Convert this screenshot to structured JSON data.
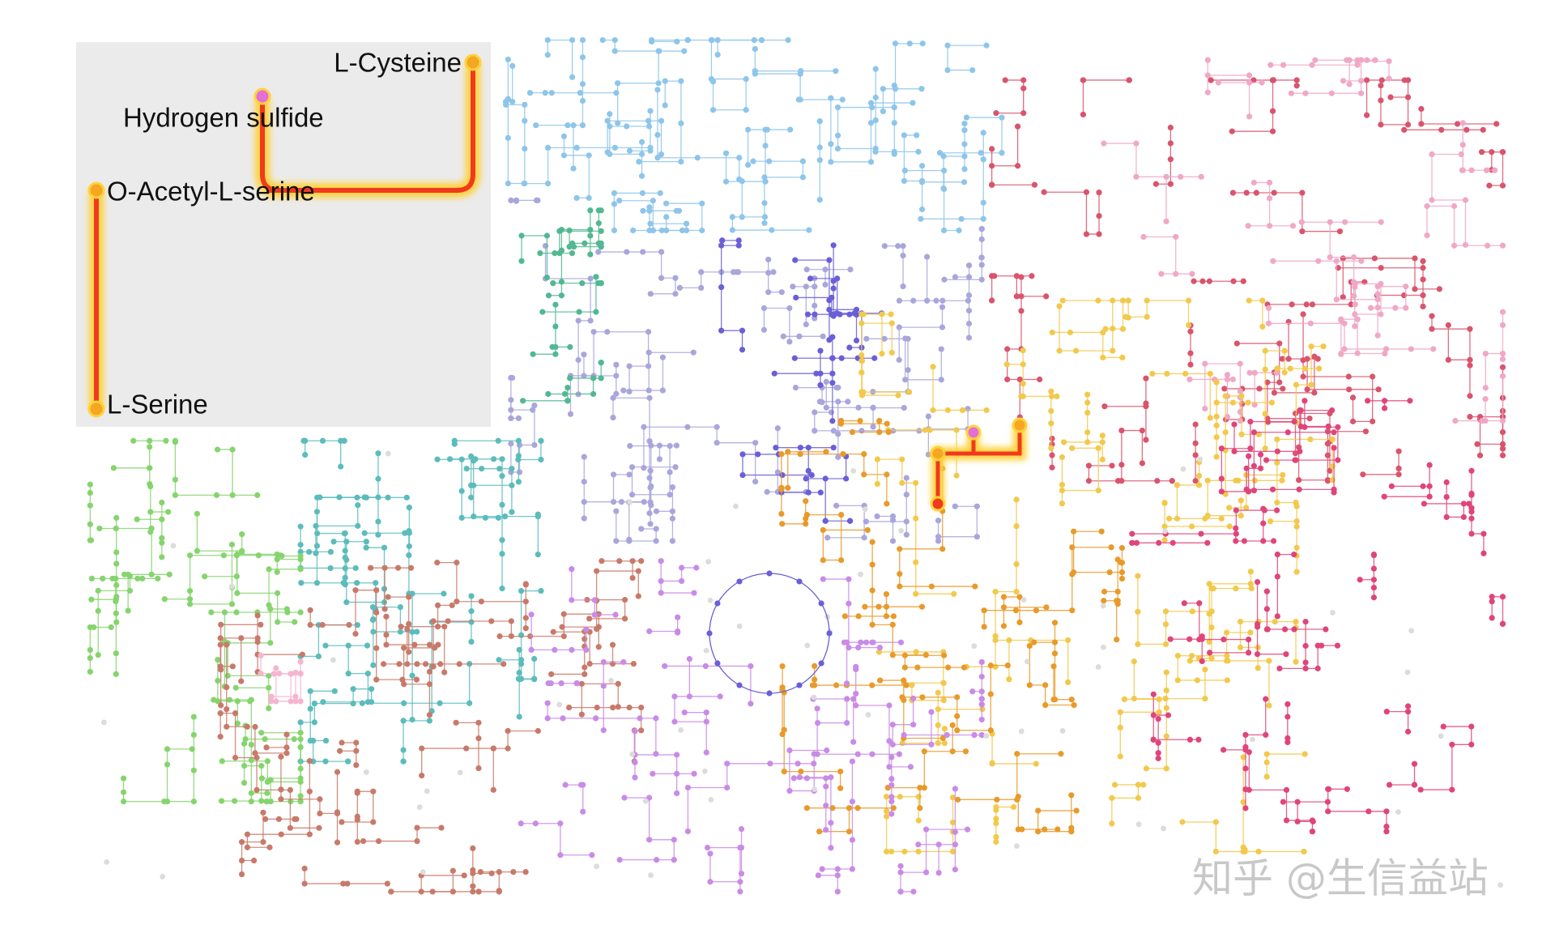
{
  "inset": {
    "nodes": [
      {
        "label": "L-Cysteine"
      },
      {
        "label": "Hydrogen sulfide"
      },
      {
        "label": "O-Acetyl-L-serine"
      },
      {
        "label": "L-Serine"
      }
    ]
  },
  "watermark": "知乎 @生信益站"
}
